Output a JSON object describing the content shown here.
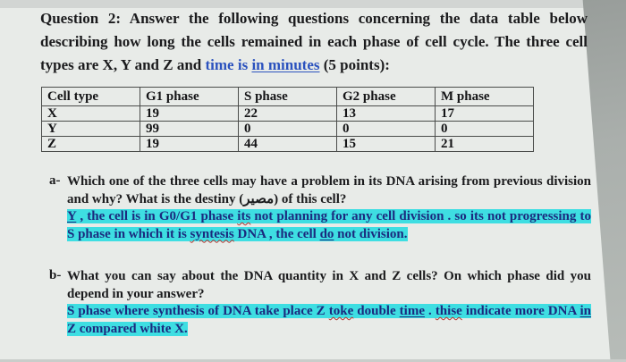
{
  "colors": {
    "highlight": "#3edee2",
    "answer_text": "#1b2a7e",
    "link_blue": "#2b52be",
    "page_background": "#e8ebe8"
  },
  "header": {
    "segments": [
      {
        "t": "Question 2: Answer the following questions concerning the data table below describing how long the cells remained in each phase of cell cycle. The three cell types are X, Y and Z and "
      },
      {
        "t": "time is ",
        "cls": "blue"
      },
      {
        "t": "in minutes",
        "cls": "blue u"
      },
      {
        "t": " (5 points):"
      }
    ]
  },
  "table": {
    "headers": [
      "Cell type",
      "G1 phase",
      "S phase",
      "G2 phase",
      "M phase"
    ],
    "rows": [
      {
        "cells": [
          "X",
          "19",
          "22",
          "13",
          "17"
        ]
      },
      {
        "cells": [
          "Y",
          "99",
          "0",
          "0",
          "0"
        ]
      },
      {
        "cells": [
          "Z",
          "19",
          "44",
          "15",
          "21"
        ]
      }
    ]
  },
  "question_a": {
    "label": "a-",
    "text": "Which one of the three cells may have a problem in its DNA arising from previous division and why? What is the destiny (مصير) of this cell?",
    "answer_segments": [
      {
        "t": "Y",
        "cls": "u"
      },
      {
        "t": " , the cell is in G0/G1 phase "
      },
      {
        "t": "its",
        "cls": "w"
      },
      {
        "t": " not planning for any cell division . so its not progressing to S phase in which it is "
      },
      {
        "t": "syntesis",
        "cls": "w"
      },
      {
        "t": " DNA , the cell "
      },
      {
        "t": "do",
        "cls": "u"
      },
      {
        "t": " not division."
      }
    ]
  },
  "question_b": {
    "label": "b-",
    "text": "What you can say about the DNA quantity in X and Z cells? On which phase did you depend in your answer?",
    "answer_segments": [
      {
        "t": "S phase where synthesis of DNA take place Z "
      },
      {
        "t": "toke",
        "cls": "w"
      },
      {
        "t": " double "
      },
      {
        "t": "time",
        "cls": "u"
      },
      {
        "t": " . "
      },
      {
        "t": "thise",
        "cls": "w"
      },
      {
        "t": " indicate more DNA "
      },
      {
        "t": "in",
        "cls": "u"
      },
      {
        "t": " Z compared white X."
      }
    ]
  }
}
